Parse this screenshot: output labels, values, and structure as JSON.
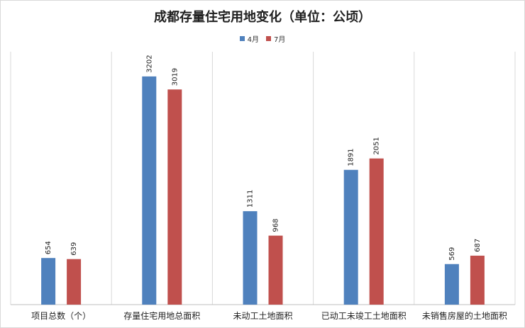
{
  "chart_data": {
    "type": "bar",
    "title": "成都存量住宅用地变化（单位：公顷）",
    "categories": [
      "项目总数（个）",
      "存量住宅用地总面积",
      "未动工土地面积",
      "已动工未竣工土地面积",
      "未销售房屋的土地面积"
    ],
    "series": [
      {
        "name": "4月",
        "color": "#4f81bd",
        "values": [
          654,
          3202,
          1311,
          1891,
          569
        ]
      },
      {
        "name": "7月",
        "color": "#c0504d",
        "values": [
          639,
          3019,
          968,
          2051,
          687
        ]
      }
    ],
    "xlabel": "",
    "ylabel": "",
    "ylim": [
      0,
      3500
    ],
    "grid": false,
    "legend_position": "top-center",
    "data_labels": true
  }
}
